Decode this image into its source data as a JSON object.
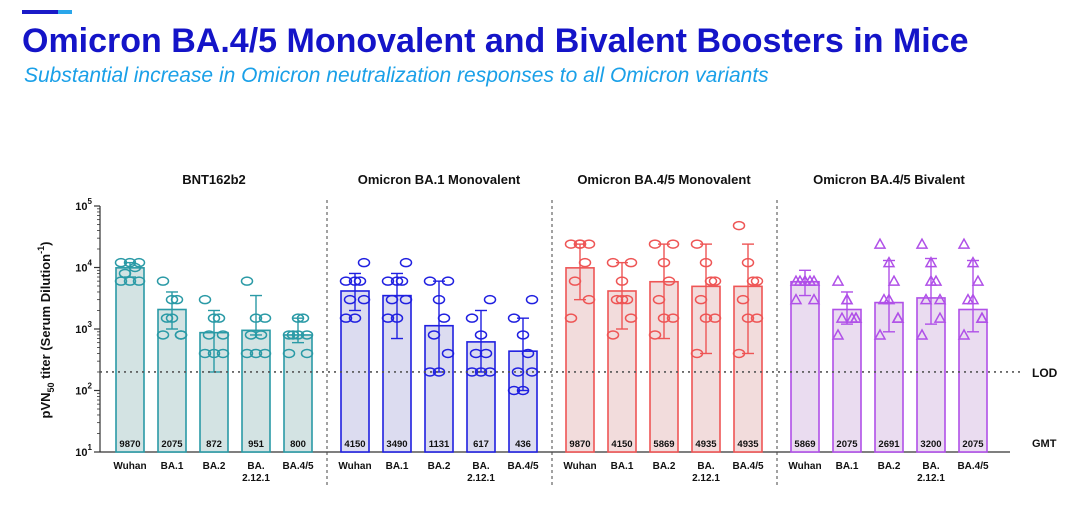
{
  "header": {
    "title": "Omicron BA.4/5 Monovalent and Bivalent Boosters in Mice",
    "subtitle": "Substantial increase in Omicron neutralization responses to all Omicron variants"
  },
  "chart_data": {
    "type": "bar",
    "scale": "log",
    "ylabel_main": "pVN",
    "ylabel_sub": "50",
    "ylabel_rest": " titer (Serum Dilution",
    "ylabel_sup": "-1",
    "ylabel_end": ")",
    "ylim": [
      10,
      100000
    ],
    "yticks": [
      {
        "base": "10",
        "exp": "1",
        "value": 10
      },
      {
        "base": "10",
        "exp": "2",
        "value": 100
      },
      {
        "base": "10",
        "exp": "3",
        "value": 1000
      },
      {
        "base": "10",
        "exp": "4",
        "value": 10000
      },
      {
        "base": "10",
        "exp": "5",
        "value": 100000
      }
    ],
    "lod": {
      "value": 200,
      "label": "LOD"
    },
    "gmt_label": "GMT",
    "groups": [
      {
        "name": "BNT162b2",
        "color": "#2a9aa6",
        "fill": "#d3e3e3",
        "marker": "circle",
        "categories": [
          "Wuhan",
          "BA.1",
          "BA.2",
          "BA.\n2.12.1",
          "BA.4/5"
        ],
        "values": [
          9870,
          2075,
          872,
          951,
          800
        ],
        "labels": [
          "9870",
          "2075",
          "872",
          "951",
          "800"
        ],
        "error_high": [
          12000,
          4000,
          2000,
          3500,
          1500
        ],
        "error_low": [
          7000,
          1000,
          200,
          800,
          600
        ],
        "points": [
          [
            6000,
            6000,
            8000,
            10000,
            12000,
            12000,
            12000,
            6000
          ],
          [
            800,
            800,
            1500,
            3000,
            1500,
            6000,
            800,
            3000
          ],
          [
            400,
            400,
            800,
            1500,
            1500,
            3000,
            800,
            400
          ],
          [
            400,
            400,
            800,
            800,
            1500,
            6000,
            1500,
            400
          ],
          [
            400,
            800,
            800,
            1500,
            1500,
            800,
            400,
            800
          ]
        ]
      },
      {
        "name": "Omicron BA.1 Monovalent",
        "color": "#2020e0",
        "fill": "#dcdcf0",
        "marker": "circle",
        "categories": [
          "Wuhan",
          "BA.1",
          "BA.2",
          "BA.\n2.12.1",
          "BA.4/5"
        ],
        "values": [
          4150,
          3490,
          1131,
          617,
          436
        ],
        "labels": [
          "4150",
          "3490",
          "1131",
          "617",
          "436"
        ],
        "error_high": [
          8000,
          8000,
          6000,
          2000,
          1500
        ],
        "error_low": [
          2000,
          700,
          200,
          200,
          100
        ],
        "points": [
          [
            1500,
            3000,
            3000,
            6000,
            6000,
            6000,
            12000,
            1500
          ],
          [
            1500,
            3000,
            3000,
            6000,
            6000,
            6000,
            12000,
            1500
          ],
          [
            200,
            400,
            800,
            1500,
            3000,
            6000,
            6000,
            200
          ],
          [
            200,
            200,
            400,
            400,
            800,
            1500,
            3000,
            200
          ],
          [
            100,
            200,
            200,
            400,
            800,
            1500,
            3000,
            100
          ]
        ]
      },
      {
        "name": "Omicron BA.4/5 Monovalent",
        "color": "#ee5555",
        "fill": "#f2dcdc",
        "marker": "circle",
        "categories": [
          "Wuhan",
          "BA.1",
          "BA.2",
          "BA.\n2.12.1",
          "BA.4/5"
        ],
        "values": [
          9870,
          4150,
          5869,
          4935,
          4935
        ],
        "labels": [
          "9870",
          "4150",
          "5869",
          "4935",
          "4935"
        ],
        "error_high": [
          24000,
          12000,
          24000,
          24000,
          24000
        ],
        "error_low": [
          3000,
          1000,
          700,
          400,
          400
        ],
        "points": [
          [
            1500,
            3000,
            6000,
            12000,
            24000,
            24000,
            24000,
            24000
          ],
          [
            800,
            1500,
            3000,
            3000,
            6000,
            12000,
            12000,
            3000
          ],
          [
            800,
            1500,
            3000,
            6000,
            12000,
            24000,
            24000,
            1500
          ],
          [
            400,
            1500,
            3000,
            6000,
            12000,
            24000,
            6000,
            1500
          ],
          [
            400,
            1500,
            3000,
            6000,
            12000,
            48000,
            6000,
            1500
          ]
        ]
      },
      {
        "name": "Omicron BA.4/5 Bivalent",
        "color": "#b050e8",
        "fill": "#eadcf0",
        "marker": "triangle",
        "categories": [
          "Wuhan",
          "BA.1",
          "BA.2",
          "BA.\n2.12.1",
          "BA.4/5"
        ],
        "values": [
          5869,
          2075,
          2691,
          3200,
          2075
        ],
        "labels": [
          "5869",
          "2075",
          "2691",
          "3200",
          "2075"
        ],
        "error_high": [
          9000,
          4000,
          13000,
          14000,
          13000
        ],
        "error_low": [
          3500,
          1200,
          900,
          1200,
          900
        ],
        "points": [
          [
            3000,
            3000,
            6000,
            6000,
            6000,
            6000,
            6000,
            6000
          ],
          [
            800,
            1500,
            1500,
            1500,
            3000,
            6000,
            1500,
            3000
          ],
          [
            800,
            1500,
            3000,
            6000,
            12000,
            24000,
            1500,
            3000
          ],
          [
            800,
            1500,
            3000,
            6000,
            12000,
            24000,
            3000,
            6000
          ],
          [
            800,
            1500,
            3000,
            6000,
            12000,
            24000,
            1500,
            3000
          ]
        ]
      }
    ]
  }
}
